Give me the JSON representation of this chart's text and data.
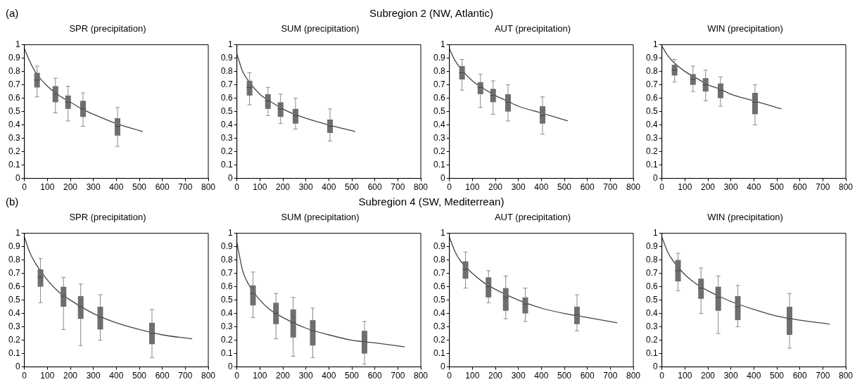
{
  "chart_data": [
    {
      "type": "box",
      "title": "SPR (precipitation)",
      "annotations": [
        "(a)",
        "Subregion 2 (NW, Atlantic)"
      ],
      "xlim": [
        0,
        800
      ],
      "xticks": [
        0,
        100,
        200,
        300,
        400,
        500,
        600,
        700,
        800
      ],
      "ylim": [
        0,
        1
      ],
      "yticks": [
        0,
        0.1,
        0.2,
        0.3,
        0.4,
        0.5,
        0.6,
        0.7,
        0.8,
        0.9,
        1
      ],
      "series": [
        {
          "color": "#6e6e6e",
          "x": [
            55,
            135,
            190,
            255,
            405
          ],
          "boxes": [
            {
              "low": 0.61,
              "q1": 0.68,
              "median": 0.735,
              "q3": 0.79,
              "high": 0.84
            },
            {
              "low": 0.49,
              "q1": 0.57,
              "median": 0.63,
              "q3": 0.69,
              "high": 0.75
            },
            {
              "low": 0.43,
              "q1": 0.52,
              "median": 0.57,
              "q3": 0.62,
              "high": 0.69
            },
            {
              "low": 0.39,
              "q1": 0.46,
              "median": 0.52,
              "q3": 0.58,
              "high": 0.64
            },
            {
              "low": 0.24,
              "q1": 0.32,
              "median": 0.39,
              "q3": 0.45,
              "high": 0.53
            }
          ]
        },
        {
          "type": "line",
          "color": "#444444",
          "x": [
            0,
            25,
            50,
            100,
            150,
            200,
            250,
            300,
            400,
            515
          ],
          "values": [
            0.97,
            0.87,
            0.79,
            0.69,
            0.62,
            0.57,
            0.52,
            0.48,
            0.41,
            0.35
          ]
        }
      ]
    },
    {
      "type": "box",
      "title": "SUM (precipitation)",
      "xlim": [
        0,
        800
      ],
      "xticks": [
        0,
        100,
        200,
        300,
        400,
        500,
        600,
        700,
        800
      ],
      "ylim": [
        0,
        1
      ],
      "yticks": [
        0,
        0.1,
        0.2,
        0.3,
        0.4,
        0.5,
        0.6,
        0.7,
        0.8,
        0.9,
        1
      ],
      "series": [
        {
          "color": "#6e6e6e",
          "x": [
            55,
            135,
            190,
            255,
            405
          ],
          "boxes": [
            {
              "low": 0.55,
              "q1": 0.62,
              "median": 0.68,
              "q3": 0.73,
              "high": 0.79
            },
            {
              "low": 0.47,
              "q1": 0.52,
              "median": 0.58,
              "q3": 0.63,
              "high": 0.68
            },
            {
              "low": 0.41,
              "q1": 0.46,
              "median": 0.52,
              "q3": 0.57,
              "high": 0.63
            },
            {
              "low": 0.37,
              "q1": 0.41,
              "median": 0.47,
              "q3": 0.52,
              "high": 0.6
            },
            {
              "low": 0.28,
              "q1": 0.34,
              "median": 0.39,
              "q3": 0.44,
              "high": 0.52
            }
          ]
        },
        {
          "type": "line",
          "color": "#444444",
          "x": [
            0,
            25,
            50,
            100,
            150,
            200,
            250,
            300,
            400,
            515
          ],
          "values": [
            0.93,
            0.8,
            0.73,
            0.63,
            0.57,
            0.52,
            0.48,
            0.45,
            0.4,
            0.35
          ]
        }
      ]
    },
    {
      "type": "box",
      "title": "AUT (precipitation)",
      "xlim": [
        0,
        800
      ],
      "xticks": [
        0,
        100,
        200,
        300,
        400,
        500,
        600,
        700,
        800
      ],
      "ylim": [
        0,
        1
      ],
      "yticks": [
        0,
        0.1,
        0.2,
        0.3,
        0.4,
        0.5,
        0.6,
        0.7,
        0.8,
        0.9,
        1
      ],
      "series": [
        {
          "color": "#6e6e6e",
          "x": [
            55,
            135,
            190,
            255,
            405
          ],
          "boxes": [
            {
              "low": 0.66,
              "q1": 0.74,
              "median": 0.79,
              "q3": 0.84,
              "high": 0.89
            },
            {
              "low": 0.53,
              "q1": 0.63,
              "median": 0.68,
              "q3": 0.72,
              "high": 0.78
            },
            {
              "low": 0.48,
              "q1": 0.57,
              "median": 0.62,
              "q3": 0.67,
              "high": 0.73
            },
            {
              "low": 0.43,
              "q1": 0.5,
              "median": 0.57,
              "q3": 0.63,
              "high": 0.7
            },
            {
              "low": 0.33,
              "q1": 0.41,
              "median": 0.47,
              "q3": 0.54,
              "high": 0.61
            }
          ]
        },
        {
          "type": "line",
          "color": "#444444",
          "x": [
            0,
            25,
            50,
            100,
            150,
            200,
            250,
            300,
            400,
            515
          ],
          "values": [
            0.97,
            0.88,
            0.82,
            0.73,
            0.67,
            0.62,
            0.58,
            0.54,
            0.49,
            0.43
          ]
        }
      ]
    },
    {
      "type": "box",
      "title": "WIN (precipitation)",
      "xlim": [
        0,
        800
      ],
      "xticks": [
        0,
        100,
        200,
        300,
        400,
        500,
        600,
        700,
        800
      ],
      "ylim": [
        0,
        1
      ],
      "yticks": [
        0,
        0.1,
        0.2,
        0.3,
        0.4,
        0.5,
        0.6,
        0.7,
        0.8,
        0.9,
        1
      ],
      "series": [
        {
          "color": "#6e6e6e",
          "x": [
            55,
            135,
            190,
            255,
            405
          ],
          "boxes": [
            {
              "low": 0.72,
              "q1": 0.77,
              "median": 0.81,
              "q3": 0.85,
              "high": 0.89
            },
            {
              "low": 0.65,
              "q1": 0.7,
              "median": 0.74,
              "q3": 0.78,
              "high": 0.84
            },
            {
              "low": 0.58,
              "q1": 0.65,
              "median": 0.7,
              "q3": 0.75,
              "high": 0.81
            },
            {
              "low": 0.54,
              "q1": 0.6,
              "median": 0.66,
              "q3": 0.71,
              "high": 0.76
            },
            {
              "low": 0.4,
              "q1": 0.48,
              "median": 0.57,
              "q3": 0.64,
              "high": 0.7
            }
          ]
        },
        {
          "type": "line",
          "color": "#444444",
          "x": [
            0,
            25,
            50,
            100,
            150,
            200,
            250,
            300,
            400,
            520
          ],
          "values": [
            0.99,
            0.92,
            0.87,
            0.8,
            0.75,
            0.7,
            0.67,
            0.63,
            0.58,
            0.52
          ]
        }
      ]
    },
    {
      "type": "box",
      "title": "SPR (precipitation)",
      "annotations": [
        "(b)",
        "Subregion 4 (SW, Mediterrean)"
      ],
      "xlim": [
        0,
        800
      ],
      "xticks": [
        0,
        100,
        200,
        300,
        400,
        500,
        600,
        700,
        800
      ],
      "ylim": [
        0,
        1
      ],
      "yticks": [
        0,
        0.1,
        0.2,
        0.3,
        0.4,
        0.5,
        0.6,
        0.7,
        0.8,
        0.9,
        1
      ],
      "series": [
        {
          "color": "#6e6e6e",
          "x": [
            70,
            170,
            245,
            330,
            555
          ],
          "boxes": [
            {
              "low": 0.48,
              "q1": 0.6,
              "median": 0.67,
              "q3": 0.73,
              "high": 0.81
            },
            {
              "low": 0.28,
              "q1": 0.45,
              "median": 0.53,
              "q3": 0.6,
              "high": 0.67
            },
            {
              "low": 0.16,
              "q1": 0.36,
              "median": 0.45,
              "q3": 0.53,
              "high": 0.62
            },
            {
              "low": 0.2,
              "q1": 0.28,
              "median": 0.37,
              "q3": 0.45,
              "high": 0.54
            },
            {
              "low": 0.07,
              "q1": 0.17,
              "median": 0.25,
              "q3": 0.33,
              "high": 0.43
            }
          ]
        },
        {
          "type": "line",
          "color": "#444444",
          "x": [
            0,
            25,
            50,
            100,
            150,
            200,
            300,
            400,
            500,
            600,
            730
          ],
          "values": [
            0.97,
            0.85,
            0.77,
            0.65,
            0.56,
            0.5,
            0.4,
            0.33,
            0.28,
            0.24,
            0.21
          ]
        }
      ]
    },
    {
      "type": "box",
      "title": "SUM (precipitation)",
      "xlim": [
        0,
        800
      ],
      "xticks": [
        0,
        100,
        200,
        300,
        400,
        500,
        600,
        700,
        800
      ],
      "ylim": [
        0,
        1
      ],
      "yticks": [
        0,
        0.1,
        0.2,
        0.3,
        0.4,
        0.5,
        0.6,
        0.7,
        0.8,
        0.9,
        1
      ],
      "series": [
        {
          "color": "#6e6e6e",
          "x": [
            70,
            170,
            245,
            330,
            555
          ],
          "boxes": [
            {
              "low": 0.37,
              "q1": 0.46,
              "median": 0.55,
              "q3": 0.61,
              "high": 0.71
            },
            {
              "low": 0.21,
              "q1": 0.32,
              "median": 0.4,
              "q3": 0.48,
              "high": 0.55
            },
            {
              "low": 0.08,
              "q1": 0.22,
              "median": 0.33,
              "q3": 0.43,
              "high": 0.52
            },
            {
              "low": 0.07,
              "q1": 0.16,
              "median": 0.27,
              "q3": 0.35,
              "high": 0.44
            },
            {
              "low": 0.02,
              "q1": 0.1,
              "median": 0.19,
              "q3": 0.27,
              "high": 0.34
            }
          ]
        },
        {
          "type": "line",
          "color": "#444444",
          "x": [
            0,
            25,
            50,
            100,
            150,
            200,
            300,
            400,
            500,
            600,
            730
          ],
          "values": [
            0.93,
            0.72,
            0.62,
            0.5,
            0.42,
            0.37,
            0.29,
            0.24,
            0.2,
            0.18,
            0.15
          ]
        }
      ]
    },
    {
      "type": "box",
      "title": "AUT (precipitation)",
      "xlim": [
        0,
        800
      ],
      "xticks": [
        0,
        100,
        200,
        300,
        400,
        500,
        600,
        700,
        800
      ],
      "ylim": [
        0,
        1
      ],
      "yticks": [
        0,
        0.1,
        0.2,
        0.3,
        0.4,
        0.5,
        0.6,
        0.7,
        0.8,
        0.9,
        1
      ],
      "series": [
        {
          "color": "#6e6e6e",
          "x": [
            70,
            170,
            245,
            330,
            555
          ],
          "boxes": [
            {
              "low": 0.59,
              "q1": 0.66,
              "median": 0.73,
              "q3": 0.79,
              "high": 0.86
            },
            {
              "low": 0.48,
              "q1": 0.52,
              "median": 0.6,
              "q3": 0.67,
              "high": 0.72
            },
            {
              "low": 0.36,
              "q1": 0.42,
              "median": 0.52,
              "q3": 0.59,
              "high": 0.68
            },
            {
              "low": 0.34,
              "q1": 0.4,
              "median": 0.47,
              "q3": 0.52,
              "high": 0.59
            },
            {
              "low": 0.27,
              "q1": 0.32,
              "median": 0.39,
              "q3": 0.45,
              "high": 0.54
            }
          ]
        },
        {
          "type": "line",
          "color": "#444444",
          "x": [
            0,
            25,
            50,
            100,
            150,
            200,
            300,
            400,
            500,
            600,
            730
          ],
          "values": [
            0.97,
            0.86,
            0.79,
            0.7,
            0.63,
            0.58,
            0.5,
            0.44,
            0.4,
            0.37,
            0.33
          ]
        }
      ]
    },
    {
      "type": "box",
      "title": "WIN (precipitation)",
      "xlim": [
        0,
        800
      ],
      "xticks": [
        0,
        100,
        200,
        300,
        400,
        500,
        600,
        700,
        800
      ],
      "ylim": [
        0,
        1
      ],
      "yticks": [
        0,
        0.1,
        0.2,
        0.3,
        0.4,
        0.5,
        0.6,
        0.7,
        0.8,
        0.9,
        1
      ],
      "series": [
        {
          "color": "#6e6e6e",
          "x": [
            70,
            170,
            245,
            330,
            555
          ],
          "boxes": [
            {
              "low": 0.57,
              "q1": 0.64,
              "median": 0.72,
              "q3": 0.8,
              "high": 0.85
            },
            {
              "low": 0.4,
              "q1": 0.51,
              "median": 0.59,
              "q3": 0.66,
              "high": 0.74
            },
            {
              "low": 0.25,
              "q1": 0.42,
              "median": 0.52,
              "q3": 0.6,
              "high": 0.68
            },
            {
              "low": 0.3,
              "q1": 0.35,
              "median": 0.45,
              "q3": 0.53,
              "high": 0.61
            },
            {
              "low": 0.14,
              "q1": 0.24,
              "median": 0.36,
              "q3": 0.45,
              "high": 0.55
            }
          ]
        },
        {
          "type": "line",
          "color": "#444444",
          "x": [
            0,
            25,
            50,
            100,
            150,
            200,
            300,
            400,
            500,
            600,
            730
          ],
          "values": [
            0.97,
            0.86,
            0.79,
            0.69,
            0.62,
            0.57,
            0.49,
            0.43,
            0.38,
            0.35,
            0.32
          ]
        }
      ]
    }
  ]
}
